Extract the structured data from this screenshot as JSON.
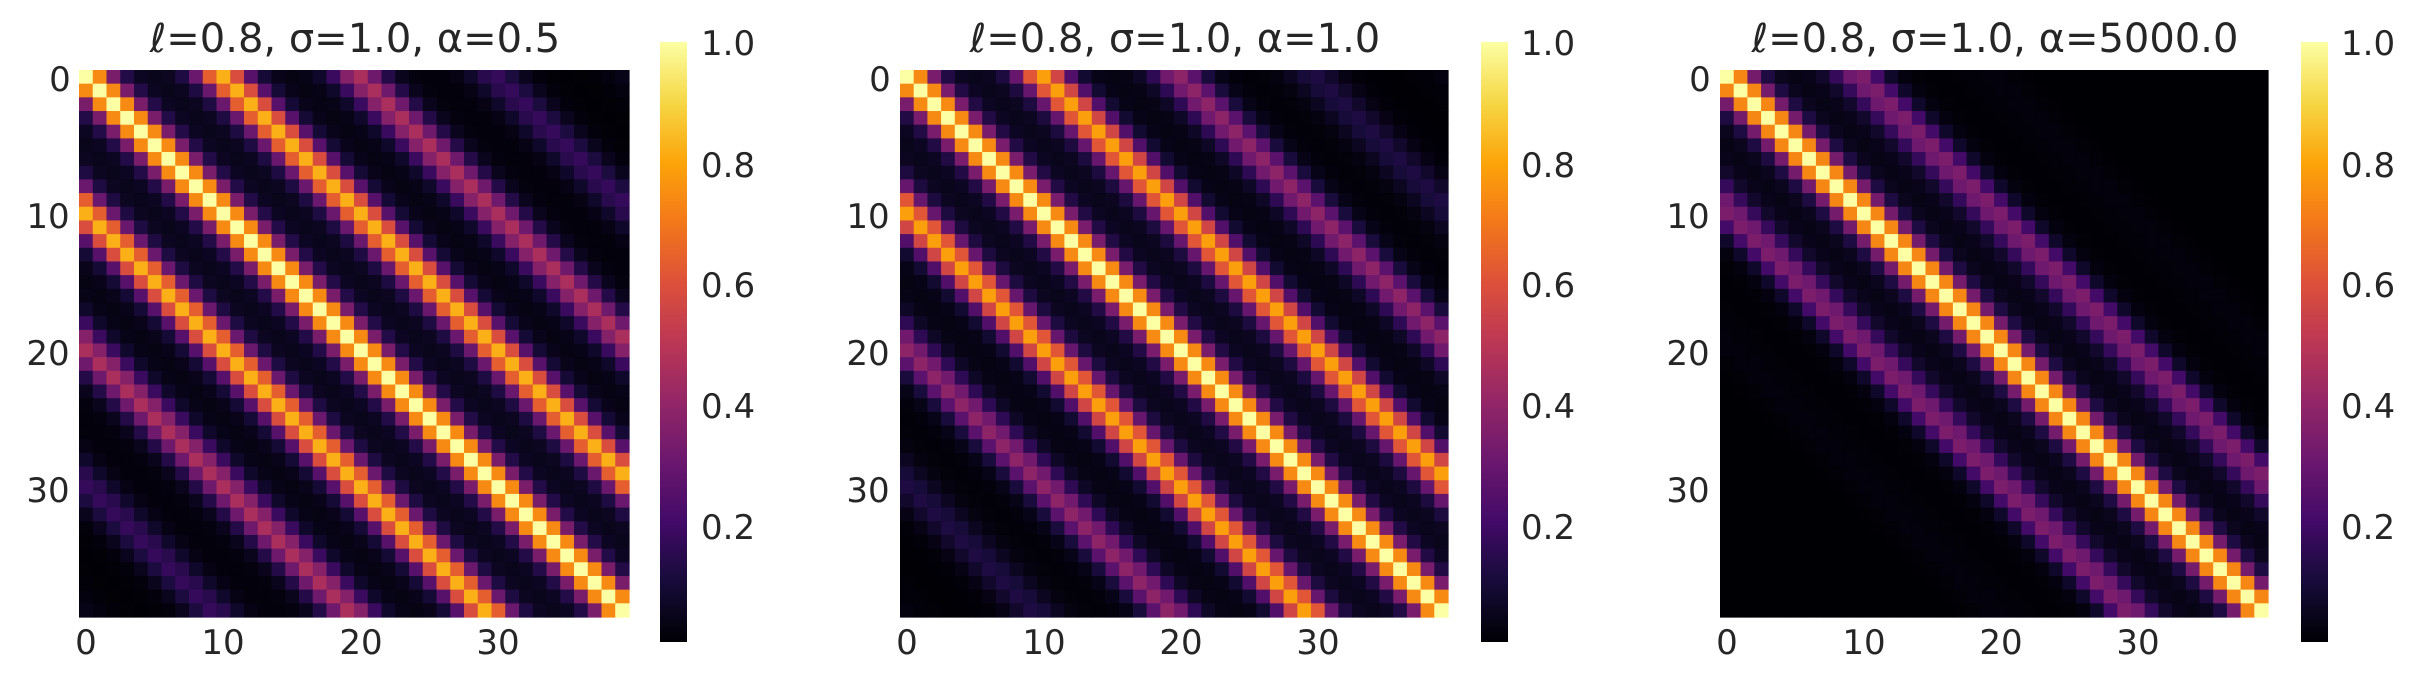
{
  "chart_data": [
    {
      "type": "heatmap",
      "title": "ℓ=0.8, σ=1.0, α=0.5",
      "params": {
        "lengthscale": 0.8,
        "sigma": 1.0,
        "alpha": 0.5
      },
      "size": 40,
      "block": 10,
      "colormap": "inferno",
      "xticks": [
        "0",
        "10",
        "20",
        "30"
      ],
      "yticks": [
        "0",
        "10",
        "20",
        "30"
      ],
      "colorbar": {
        "ticks": [
          "0.2",
          "0.4",
          "0.6",
          "0.8",
          "1.0"
        ],
        "range": [
          0.0,
          1.0
        ]
      },
      "approx_values": {
        "diagonal": 1.0,
        "same_block_edge": 0.55,
        "adjacent_block_peak": 0.74,
        "far_block_mean": 0.42
      }
    },
    {
      "type": "heatmap",
      "title": "ℓ=0.8, σ=1.0, α=1.0",
      "params": {
        "lengthscale": 0.8,
        "sigma": 1.0,
        "alpha": 1.0
      },
      "size": 40,
      "block": 10,
      "colormap": "inferno",
      "xticks": [
        "0",
        "10",
        "20",
        "30"
      ],
      "yticks": [
        "0",
        "10",
        "20",
        "30"
      ],
      "colorbar": {
        "ticks": [
          "0.2",
          "0.4",
          "0.6",
          "0.8",
          "1.0"
        ],
        "range": [
          0.0,
          1.0
        ]
      },
      "approx_values": {
        "diagonal": 1.0,
        "same_block_edge": 0.35,
        "adjacent_block_peak": 0.73,
        "far_block_mean": 0.25
      }
    },
    {
      "type": "heatmap",
      "title": "ℓ=0.8, σ=1.0, α=5000.0",
      "params": {
        "lengthscale": 0.8,
        "sigma": 1.0,
        "alpha": 5000.0
      },
      "size": 40,
      "block": 10,
      "colormap": "inferno",
      "xticks": [
        "0",
        "10",
        "20",
        "30"
      ],
      "yticks": [
        "0",
        "10",
        "20",
        "30"
      ],
      "colorbar": {
        "ticks": [
          "0.2",
          "0.4",
          "0.6",
          "0.8",
          "1.0"
        ],
        "range": [
          0.0,
          1.0
        ]
      },
      "approx_values": {
        "diagonal": 1.0,
        "same_block_edge": 0.05,
        "adjacent_block_peak": 0.72,
        "far_block_mean": 0.06
      }
    }
  ]
}
